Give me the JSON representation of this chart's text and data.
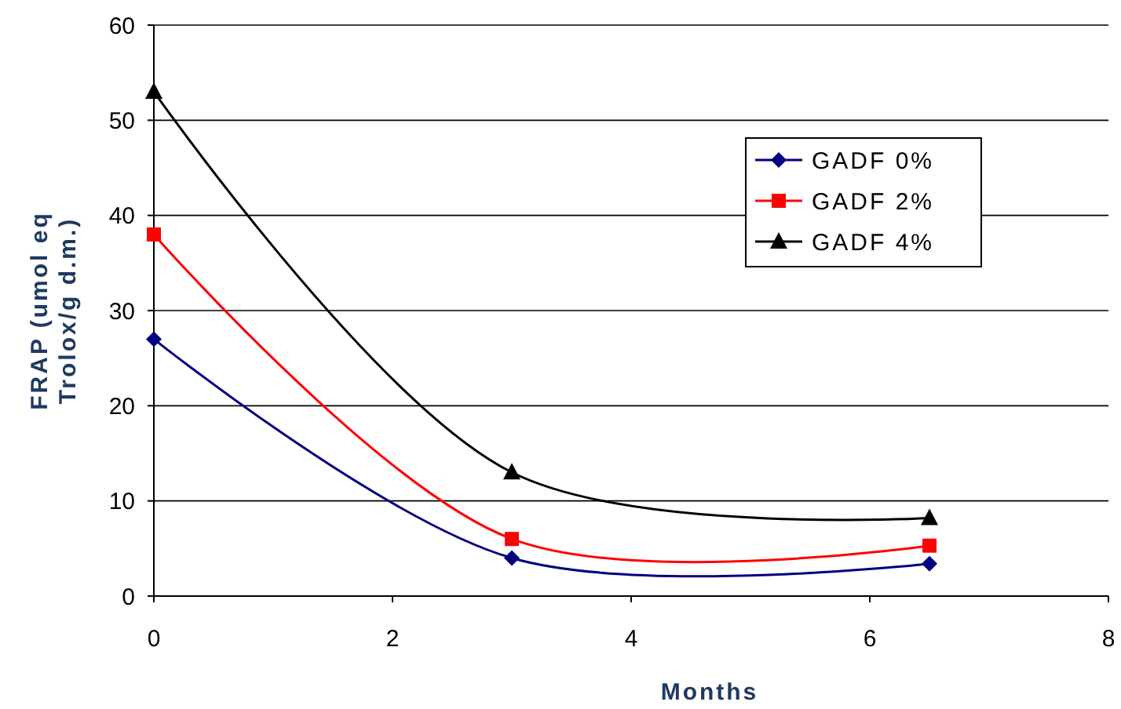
{
  "chart_data": {
    "type": "line",
    "xlabel": "Months",
    "ylabel": "FRAP (umol eq\nTrolox/g d.m.)",
    "xlim": [
      0,
      8
    ],
    "ylim": [
      0,
      60
    ],
    "xticks": [
      0,
      2,
      4,
      6,
      8
    ],
    "yticks": [
      0,
      10,
      20,
      30,
      40,
      50,
      60
    ],
    "grid": "y",
    "legend": "top right",
    "x": [
      0,
      3,
      6.5
    ],
    "series": [
      {
        "name": "GADF 0%",
        "color": "#000080",
        "marker": "diamond",
        "values": [
          27,
          4,
          3.4
        ]
      },
      {
        "name": "GADF 2%",
        "color": "#ff0000",
        "marker": "square",
        "values": [
          38,
          6,
          5.3
        ]
      },
      {
        "name": "GADF 4%",
        "color": "#000000",
        "marker": "triangle",
        "values": [
          53,
          13,
          8.2
        ]
      }
    ]
  }
}
